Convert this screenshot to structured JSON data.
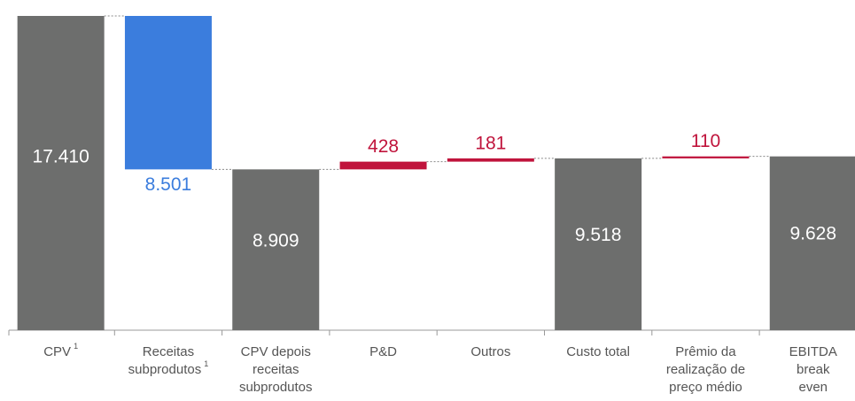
{
  "chart_data": {
    "type": "waterfall",
    "categories": [
      [
        "CPV"
      ],
      [
        "Receitas",
        "subprodutos"
      ],
      [
        "CPV depois",
        "receitas",
        "subprodutos"
      ],
      [
        "P&D"
      ],
      [
        "Outros"
      ],
      [
        "Custo total"
      ],
      [
        "Prêmio da",
        "realização de",
        "preço médio"
      ],
      [
        "EBITDA",
        "break",
        "even"
      ]
    ],
    "category_notes": [
      "1",
      "1",
      null,
      null,
      null,
      null,
      null,
      null
    ],
    "kinds": [
      "total",
      "decrease",
      "total",
      "increase",
      "increase",
      "total",
      "increase",
      "total"
    ],
    "values": [
      17410,
      8501,
      8909,
      428,
      181,
      9518,
      110,
      9628
    ],
    "value_labels": [
      "17.410",
      "8.501",
      "8.909",
      "428",
      "181",
      "9.518",
      "110",
      "9.628"
    ],
    "colors": {
      "total": "#6d6e6d",
      "decrease": "#3b7ddd",
      "increase": "#c0143c"
    }
  }
}
